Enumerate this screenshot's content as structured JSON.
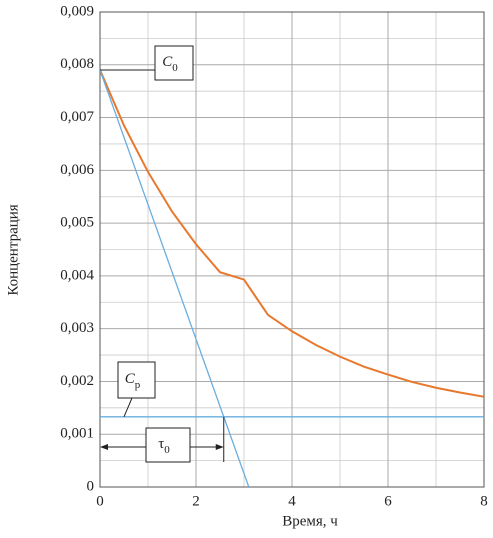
{
  "chart_data": {
    "type": "line",
    "xlabel": "Время, ч",
    "ylabel": "Концентрация",
    "xlim": [
      0,
      8
    ],
    "ylim": [
      0,
      0.009
    ],
    "xticks": [
      0,
      2,
      4,
      6,
      8
    ],
    "yticks": [
      {
        "value": 0,
        "label": "0"
      },
      {
        "value": 0.001,
        "label": "0,001"
      },
      {
        "value": 0.002,
        "label": "0,002"
      },
      {
        "value": 0.003,
        "label": "0,003"
      },
      {
        "value": 0.004,
        "label": "0,004"
      },
      {
        "value": 0.005,
        "label": "0,005"
      },
      {
        "value": 0.006,
        "label": "0,006"
      },
      {
        "value": 0.007,
        "label": "0,007"
      },
      {
        "value": 0.008,
        "label": "0,008"
      },
      {
        "value": 0.009,
        "label": "0,009"
      }
    ],
    "xminor": [
      1,
      3,
      5,
      7
    ],
    "yminor": [
      0.0005,
      0.0015,
      0.0025,
      0.0035,
      0.0045,
      0.0055,
      0.0065,
      0.0075,
      0.0085
    ],
    "grid": true,
    "series": [
      {
        "color": "#e8782e",
        "x": [
          0,
          0.5,
          1,
          1.5,
          2,
          2.5,
          3,
          3.5,
          4,
          4.5,
          5,
          5.5,
          6,
          6.5,
          7,
          7.5,
          8
        ],
        "values": [
          0.0079,
          0.00685,
          0.00597,
          0.00522,
          0.0046,
          0.00407,
          0.00393,
          0.00326,
          0.00295,
          0.00269,
          0.00247,
          0.00228,
          0.00213,
          0.00199,
          0.00188,
          0.00179,
          0.00171
        ]
      },
      {
        "color": "#6aaee0",
        "x": [
          0,
          3.1
        ],
        "values": [
          0.0079,
          0
        ]
      },
      {
        "color": "#6aaee0",
        "x": [
          0,
          8
        ],
        "values": [
          0.00133,
          0.00133
        ]
      }
    ],
    "annotations": [
      {
        "text": "C",
        "sub": "0"
      },
      {
        "text": "C",
        "sub": "p"
      },
      {
        "text": "τ",
        "sub": "0"
      }
    ]
  }
}
